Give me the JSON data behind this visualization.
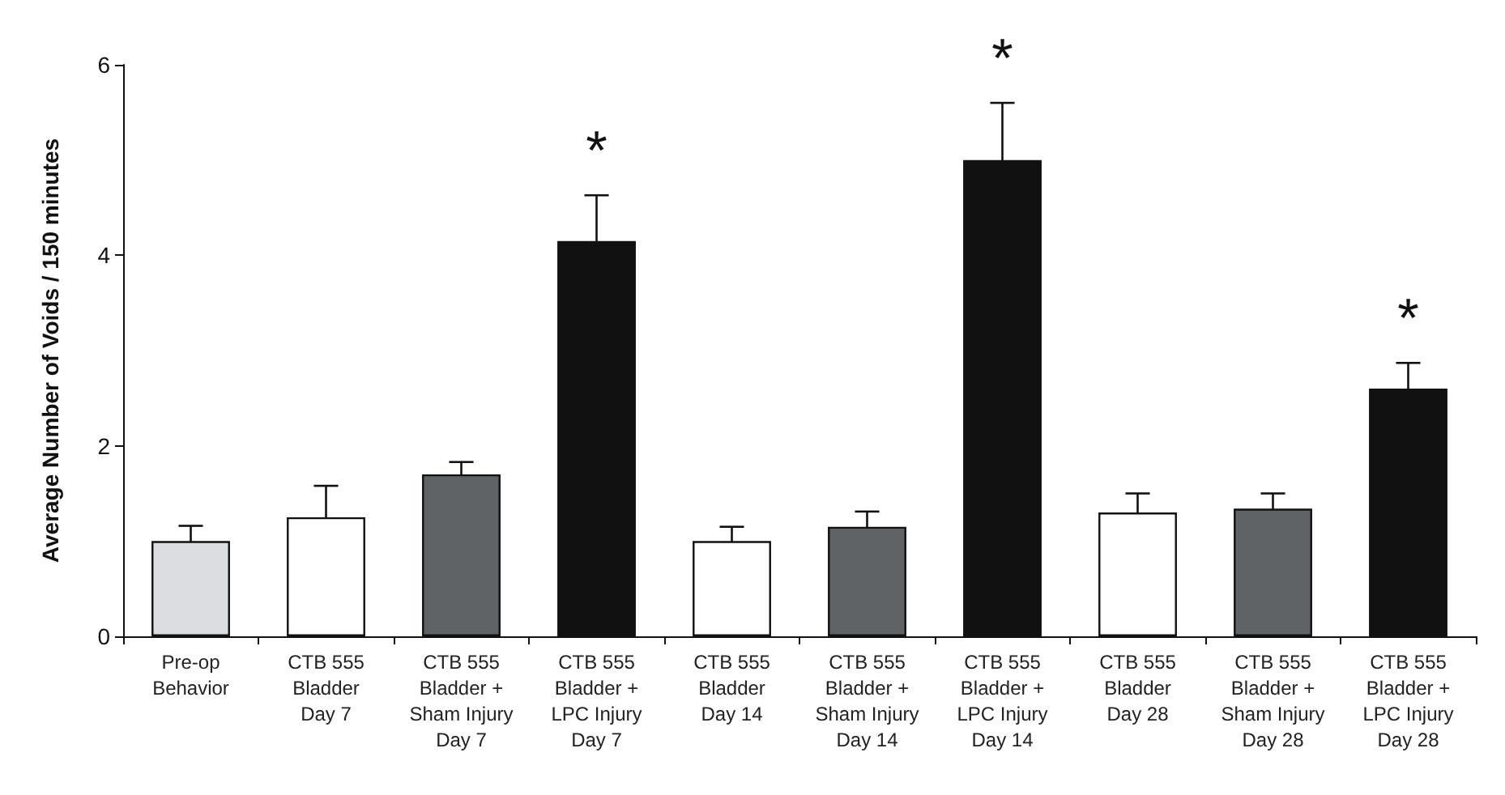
{
  "chart_data": {
    "type": "bar",
    "ylabel": "Average Number of Voids / 150 minutes",
    "categories": [
      "Pre-op\nBehavior",
      "CTB 555\nBladder\nDay 7",
      "CTB 555\nBladder +\nSham Injury\nDay 7",
      "CTB 555\nBladder +\nLPC Injury\nDay 7",
      "CTB 555\nBladder\nDay 14",
      "CTB 555\nBladder +\nSham Injury\nDay 14",
      "CTB 555\nBladder +\nLPC Injury\nDay 14",
      "CTB 555\nBladder\nDay 28",
      "CTB 555\nBladder +\nSham Injury\nDay 28",
      "CTB 555\nBladder +\nLPC Injury\nDay 28"
    ],
    "values": [
      1.0,
      1.25,
      1.7,
      4.15,
      1.0,
      1.15,
      5.0,
      1.3,
      1.34,
      2.6
    ],
    "errors": [
      0.16,
      0.33,
      0.13,
      0.48,
      0.15,
      0.16,
      0.6,
      0.2,
      0.16,
      0.27
    ],
    "colors": [
      "#dcdde0",
      "#ffffff",
      "#5f6366",
      "#111111",
      "#ffffff",
      "#5f6366",
      "#111111",
      "#ffffff",
      "#5f6366",
      "#111111"
    ],
    "ylim": [
      0,
      6
    ],
    "yticks": [
      0,
      2,
      4,
      6
    ],
    "grid": false,
    "annotations": [
      {
        "text": "*",
        "x": "CTB 555\nBladder +\nLPC Injury\nDay 7",
        "y": 4.63
      },
      {
        "text": "*",
        "x": "CTB 555\nBladder +\nLPC Injury\nDay 14",
        "y": 5.6
      },
      {
        "text": "*",
        "x": "CTB 555\nBladder +\nLPC Injury\nDay 28",
        "y": 2.87
      }
    ]
  }
}
